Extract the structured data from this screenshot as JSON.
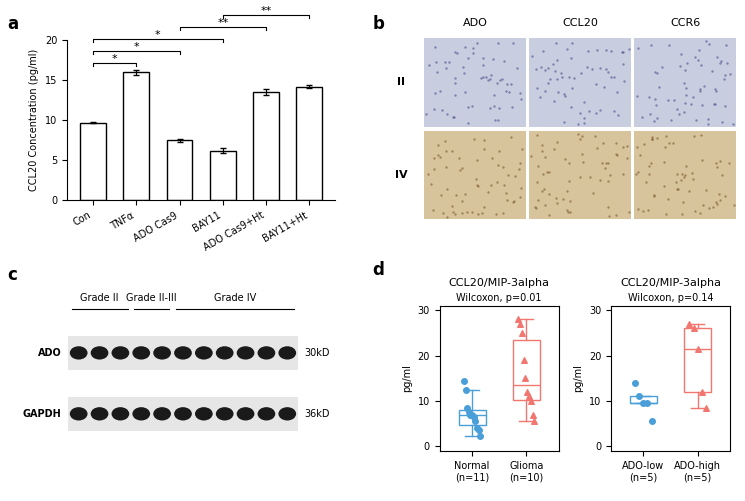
{
  "chart_data": [
    {
      "type": "bar",
      "panel_label": "a",
      "ylabel": "CCL20 Concentration (pg/ml)",
      "categories": [
        "Con",
        "TNFα",
        "ADO Cas9",
        "BAY11",
        "ADO Cas9+Ht",
        "BAY11+Ht"
      ],
      "values": [
        9.7,
        16.0,
        7.5,
        6.2,
        13.5,
        14.2
      ],
      "errors": [
        0.1,
        0.3,
        0.2,
        0.3,
        0.4,
        0.2
      ],
      "color": "#ffffff",
      "ylim": [
        0,
        20
      ],
      "yticks": [
        0,
        5,
        10,
        15,
        20
      ],
      "significance": [
        {
          "from": "Con",
          "to": "TNFα",
          "label": "*"
        },
        {
          "from": "Con",
          "to": "ADO Cas9",
          "label": "*"
        },
        {
          "from": "Con",
          "to": "BAY11",
          "label": "*"
        },
        {
          "from": "ADO Cas9",
          "to": "ADO Cas9+Ht",
          "label": "**"
        },
        {
          "from": "BAY11",
          "to": "BAY11+Ht",
          "label": "**"
        }
      ]
    },
    {
      "type": "box",
      "panel_label": "d",
      "title": "CCL20/MIP-3alpha",
      "subtitle": "Wilcoxon, p=0.01",
      "ylabel": "pg/ml",
      "categories": [
        "Normal\n(n=11)",
        "Glioma\n(n=10)"
      ],
      "groups": [
        {
          "values": [
            14.5,
            12.5,
            8.5,
            7.5,
            7.0,
            6.8,
            6.5,
            5.5,
            4.0,
            3.5,
            2.3
          ],
          "color": "#4a9fd8",
          "marker": "circle"
        },
        {
          "values": [
            28.0,
            27.0,
            25.0,
            19.0,
            15.0,
            12.0,
            11.0,
            10.0,
            7.0,
            5.5
          ],
          "color": "#f0766f",
          "marker": "triangle"
        }
      ],
      "ylim": [
        -1,
        31
      ],
      "yticks": [
        0,
        10,
        20,
        30
      ]
    },
    {
      "type": "box",
      "title": "CCL20/MIP-3alpha",
      "subtitle": "Wilcoxon, p=0.14",
      "ylabel": "pg/ml",
      "categories": [
        "ADO-low\n(n=5)",
        "ADO-high\n(n=5)"
      ],
      "groups": [
        {
          "values": [
            14.0,
            11.0,
            9.5,
            9.5,
            5.5
          ],
          "color": "#4a9fd8",
          "marker": "circle"
        },
        {
          "values": [
            27.0,
            26.0,
            21.5,
            12.0,
            8.5
          ],
          "color": "#f0766f",
          "marker": "triangle"
        }
      ],
      "ylim": [
        -1,
        31
      ],
      "yticks": [
        0,
        10,
        20,
        30
      ]
    }
  ],
  "figure": {
    "ihc": {
      "panel_label": "b",
      "columns": [
        "ADO",
        "CCL20",
        "CCR6"
      ],
      "rows": [
        "II",
        "IV"
      ]
    },
    "blot": {
      "panel_label": "c",
      "groups": [
        {
          "label": "Grade II",
          "lanes": 3
        },
        {
          "label": "Grade II-III",
          "lanes": 2
        },
        {
          "label": "Grade IV",
          "lanes": 6
        }
      ],
      "bands": [
        {
          "name": "ADO",
          "size": "30kD"
        },
        {
          "name": "GAPDH",
          "size": "36kD"
        }
      ]
    }
  }
}
